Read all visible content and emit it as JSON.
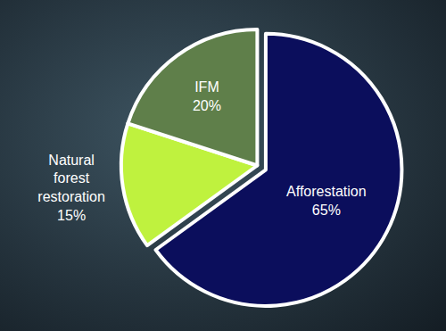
{
  "chart_data": {
    "type": "pie",
    "categories": [
      "Afforestation",
      "Natural forest restoration",
      "IFM"
    ],
    "values": [
      65,
      15,
      20
    ],
    "value_labels": [
      "65%",
      "15%",
      "20%"
    ],
    "colors": [
      "#0b0e5c",
      "#bff23e",
      "#5f7f4a"
    ],
    "data_labels": true
  }
}
